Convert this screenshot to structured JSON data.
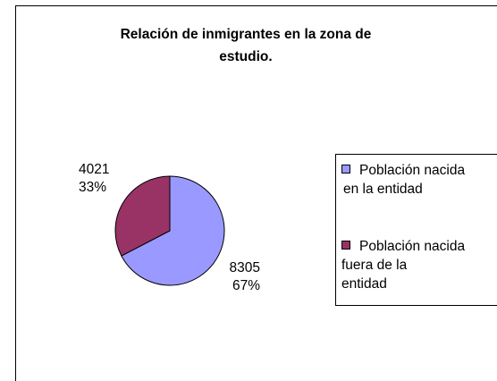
{
  "chart_data": {
    "type": "pie",
    "title_line1": "Relación de inmigrantes en la zona de",
    "title_line2": "estudio.",
    "slices": [
      {
        "name": "Población nacida en la entidad",
        "value": 8305,
        "percent": "67%",
        "color": "#9999ff"
      },
      {
        "name": "Población nacida fuera de la entidad",
        "value": 4021,
        "percent": "33%",
        "color": "#993366"
      }
    ],
    "legend": {
      "placement": "right",
      "items": [
        {
          "line1": "Población nacida",
          "line2": "en la entidad",
          "line3": ""
        },
        {
          "line1": "Población nacida",
          "line2": "fuera de la",
          "line3": "entidad"
        }
      ]
    }
  }
}
